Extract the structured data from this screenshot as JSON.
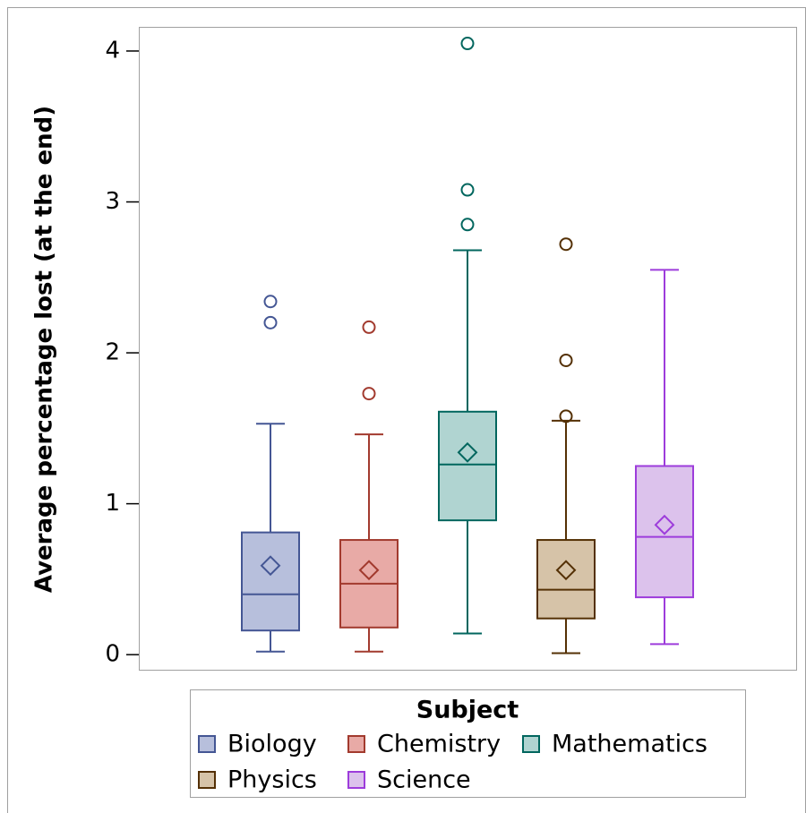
{
  "chart_data": {
    "type": "box",
    "ylabel": "Average percentage lost (at the end)",
    "ylim": [
      -0.1,
      4.16
    ],
    "yticks": [
      0,
      1,
      2,
      3,
      4
    ],
    "legend_title": "Subject",
    "series": [
      {
        "name": "Biology",
        "color": "#445694",
        "fill": "#b7bfdc",
        "min": 0.02,
        "q1": 0.16,
        "median": 0.4,
        "q3": 0.81,
        "max": 1.53,
        "mean": 0.59,
        "outliers": [
          2.2,
          2.34
        ]
      },
      {
        "name": "Chemistry",
        "color": "#a23a2e",
        "fill": "#e8aaa6",
        "min": 0.02,
        "q1": 0.18,
        "median": 0.47,
        "q3": 0.76,
        "max": 1.46,
        "mean": 0.56,
        "outliers": [
          1.73,
          2.17
        ]
      },
      {
        "name": "Mathematics",
        "color": "#01665e",
        "fill": "#b0d4d1",
        "min": 0.14,
        "q1": 0.89,
        "median": 1.26,
        "q3": 1.61,
        "max": 2.68,
        "mean": 1.34,
        "outliers": [
          2.85,
          3.08,
          4.05
        ]
      },
      {
        "name": "Physics",
        "color": "#543005",
        "fill": "#d6c3a8",
        "min": 0.01,
        "q1": 0.24,
        "median": 0.43,
        "q3": 0.76,
        "max": 1.55,
        "mean": 0.56,
        "outliers": [
          1.58,
          1.95,
          2.72
        ]
      },
      {
        "name": "Science",
        "color": "#9d3cdb",
        "fill": "#dcc2ec",
        "min": 0.07,
        "q1": 0.38,
        "median": 0.78,
        "q3": 1.25,
        "max": 2.55,
        "mean": 0.86,
        "outliers": []
      }
    ]
  }
}
